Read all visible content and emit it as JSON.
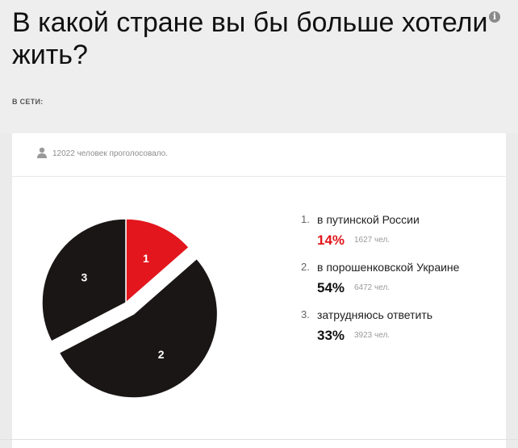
{
  "header": {
    "title": "В какой стране вы бы больше хотели жить?",
    "online_label": "В СЕТИ:"
  },
  "poll": {
    "user_icon": "user-icon",
    "voters_text": "12022 человек проголосовало."
  },
  "colors": {
    "slice_highlight": "#e2161c",
    "slice_default": "#1a1616",
    "percent_highlight": "#e2161c",
    "percent_default": "#111111"
  },
  "legend": [
    {
      "num": "1.",
      "label": "в путинской России",
      "percent": "14%",
      "count": "1627 чел."
    },
    {
      "num": "2.",
      "label": "в порошенковской Украине",
      "percent": "54%",
      "count": "6472 чел."
    },
    {
      "num": "3.",
      "label": "затрудняюсь ответить",
      "percent": "33%",
      "count": "3923 чел."
    }
  ],
  "chart_data": {
    "type": "pie",
    "categories": [
      "в путинской России",
      "в порошенковской Украине",
      "затрудняюсь ответить"
    ],
    "slice_labels": [
      "1",
      "2",
      "3"
    ],
    "values": [
      1627,
      6472,
      3923
    ],
    "percentages": [
      14,
      54,
      33
    ],
    "exploded": [
      false,
      true,
      false
    ],
    "total": 12022
  }
}
